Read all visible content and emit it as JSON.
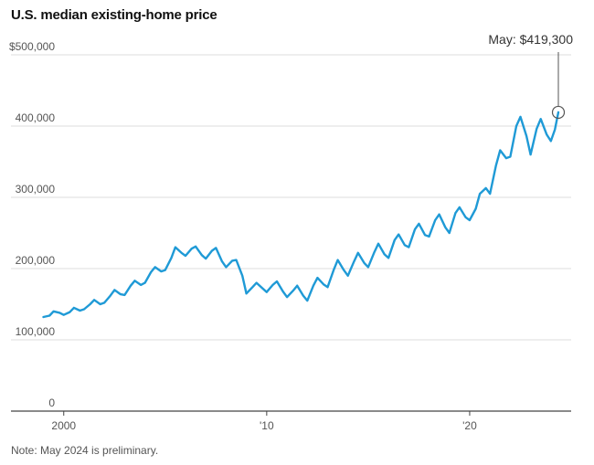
{
  "chart_data": {
    "type": "line",
    "title": "U.S. median existing-home price",
    "note": "Note: May 2024 is preliminary.",
    "y_ticks": [
      {
        "value": 500000,
        "label": "$500,000"
      },
      {
        "value": 400000,
        "label": "400,000"
      },
      {
        "value": 300000,
        "label": "300,000"
      },
      {
        "value": 200000,
        "label": "200,000"
      },
      {
        "value": 100000,
        "label": "100,000"
      },
      {
        "value": 0,
        "label": "0"
      }
    ],
    "x_ticks": [
      {
        "value": 2000,
        "label": "2000"
      },
      {
        "value": 2010,
        "label": "'10"
      },
      {
        "value": 2020,
        "label": "'20"
      }
    ],
    "xlim": [
      1997.4,
      2025.0
    ],
    "ylim": [
      0,
      500000
    ],
    "grid": true,
    "line_color": "#1f9ad6",
    "annotation": {
      "label": "May: $419,300",
      "x": 2024.37,
      "y": 419300
    },
    "series": [
      {
        "values": [
          [
            1999.0,
            132000
          ],
          [
            1999.3,
            134000
          ],
          [
            1999.5,
            140000
          ],
          [
            1999.8,
            138000
          ],
          [
            2000.0,
            135000
          ],
          [
            2000.3,
            139000
          ],
          [
            2000.5,
            145000
          ],
          [
            2000.8,
            141000
          ],
          [
            2001.0,
            143000
          ],
          [
            2001.3,
            150000
          ],
          [
            2001.5,
            156000
          ],
          [
            2001.8,
            150000
          ],
          [
            2002.0,
            152000
          ],
          [
            2002.3,
            162000
          ],
          [
            2002.5,
            170000
          ],
          [
            2002.8,
            164000
          ],
          [
            2003.0,
            163000
          ],
          [
            2003.3,
            176000
          ],
          [
            2003.5,
            183000
          ],
          [
            2003.8,
            177000
          ],
          [
            2004.0,
            180000
          ],
          [
            2004.3,
            195000
          ],
          [
            2004.5,
            202000
          ],
          [
            2004.8,
            196000
          ],
          [
            2005.0,
            198000
          ],
          [
            2005.3,
            215000
          ],
          [
            2005.5,
            230000
          ],
          [
            2005.8,
            222000
          ],
          [
            2006.0,
            218000
          ],
          [
            2006.3,
            228000
          ],
          [
            2006.5,
            231000
          ],
          [
            2006.8,
            219000
          ],
          [
            2007.0,
            214000
          ],
          [
            2007.3,
            225000
          ],
          [
            2007.5,
            229000
          ],
          [
            2007.8,
            210000
          ],
          [
            2008.0,
            202000
          ],
          [
            2008.3,
            211000
          ],
          [
            2008.5,
            212000
          ],
          [
            2008.8,
            190000
          ],
          [
            2009.0,
            165000
          ],
          [
            2009.3,
            174000
          ],
          [
            2009.5,
            180000
          ],
          [
            2009.8,
            172000
          ],
          [
            2010.0,
            167000
          ],
          [
            2010.3,
            177000
          ],
          [
            2010.5,
            182000
          ],
          [
            2010.8,
            168000
          ],
          [
            2011.0,
            160000
          ],
          [
            2011.3,
            169000
          ],
          [
            2011.5,
            176000
          ],
          [
            2011.8,
            162000
          ],
          [
            2012.0,
            155000
          ],
          [
            2012.3,
            176000
          ],
          [
            2012.5,
            187000
          ],
          [
            2012.8,
            178000
          ],
          [
            2013.0,
            174000
          ],
          [
            2013.3,
            198000
          ],
          [
            2013.5,
            212000
          ],
          [
            2013.8,
            198000
          ],
          [
            2014.0,
            190000
          ],
          [
            2014.3,
            210000
          ],
          [
            2014.5,
            222000
          ],
          [
            2014.8,
            208000
          ],
          [
            2015.0,
            202000
          ],
          [
            2015.3,
            223000
          ],
          [
            2015.5,
            235000
          ],
          [
            2015.8,
            220000
          ],
          [
            2016.0,
            215000
          ],
          [
            2016.3,
            240000
          ],
          [
            2016.5,
            248000
          ],
          [
            2016.8,
            233000
          ],
          [
            2017.0,
            230000
          ],
          [
            2017.3,
            255000
          ],
          [
            2017.5,
            263000
          ],
          [
            2017.8,
            247000
          ],
          [
            2018.0,
            245000
          ],
          [
            2018.3,
            268000
          ],
          [
            2018.5,
            276000
          ],
          [
            2018.8,
            258000
          ],
          [
            2019.0,
            250000
          ],
          [
            2019.3,
            278000
          ],
          [
            2019.5,
            286000
          ],
          [
            2019.8,
            272000
          ],
          [
            2020.0,
            268000
          ],
          [
            2020.3,
            284000
          ],
          [
            2020.5,
            305000
          ],
          [
            2020.8,
            313000
          ],
          [
            2021.0,
            305000
          ],
          [
            2021.3,
            345000
          ],
          [
            2021.5,
            366000
          ],
          [
            2021.8,
            355000
          ],
          [
            2022.0,
            357000
          ],
          [
            2022.3,
            400000
          ],
          [
            2022.5,
            413000
          ],
          [
            2022.8,
            386000
          ],
          [
            2023.0,
            360000
          ],
          [
            2023.3,
            396000
          ],
          [
            2023.5,
            410000
          ],
          [
            2023.8,
            388000
          ],
          [
            2024.0,
            379000
          ],
          [
            2024.2,
            395000
          ],
          [
            2024.37,
            419300
          ]
        ]
      }
    ]
  }
}
